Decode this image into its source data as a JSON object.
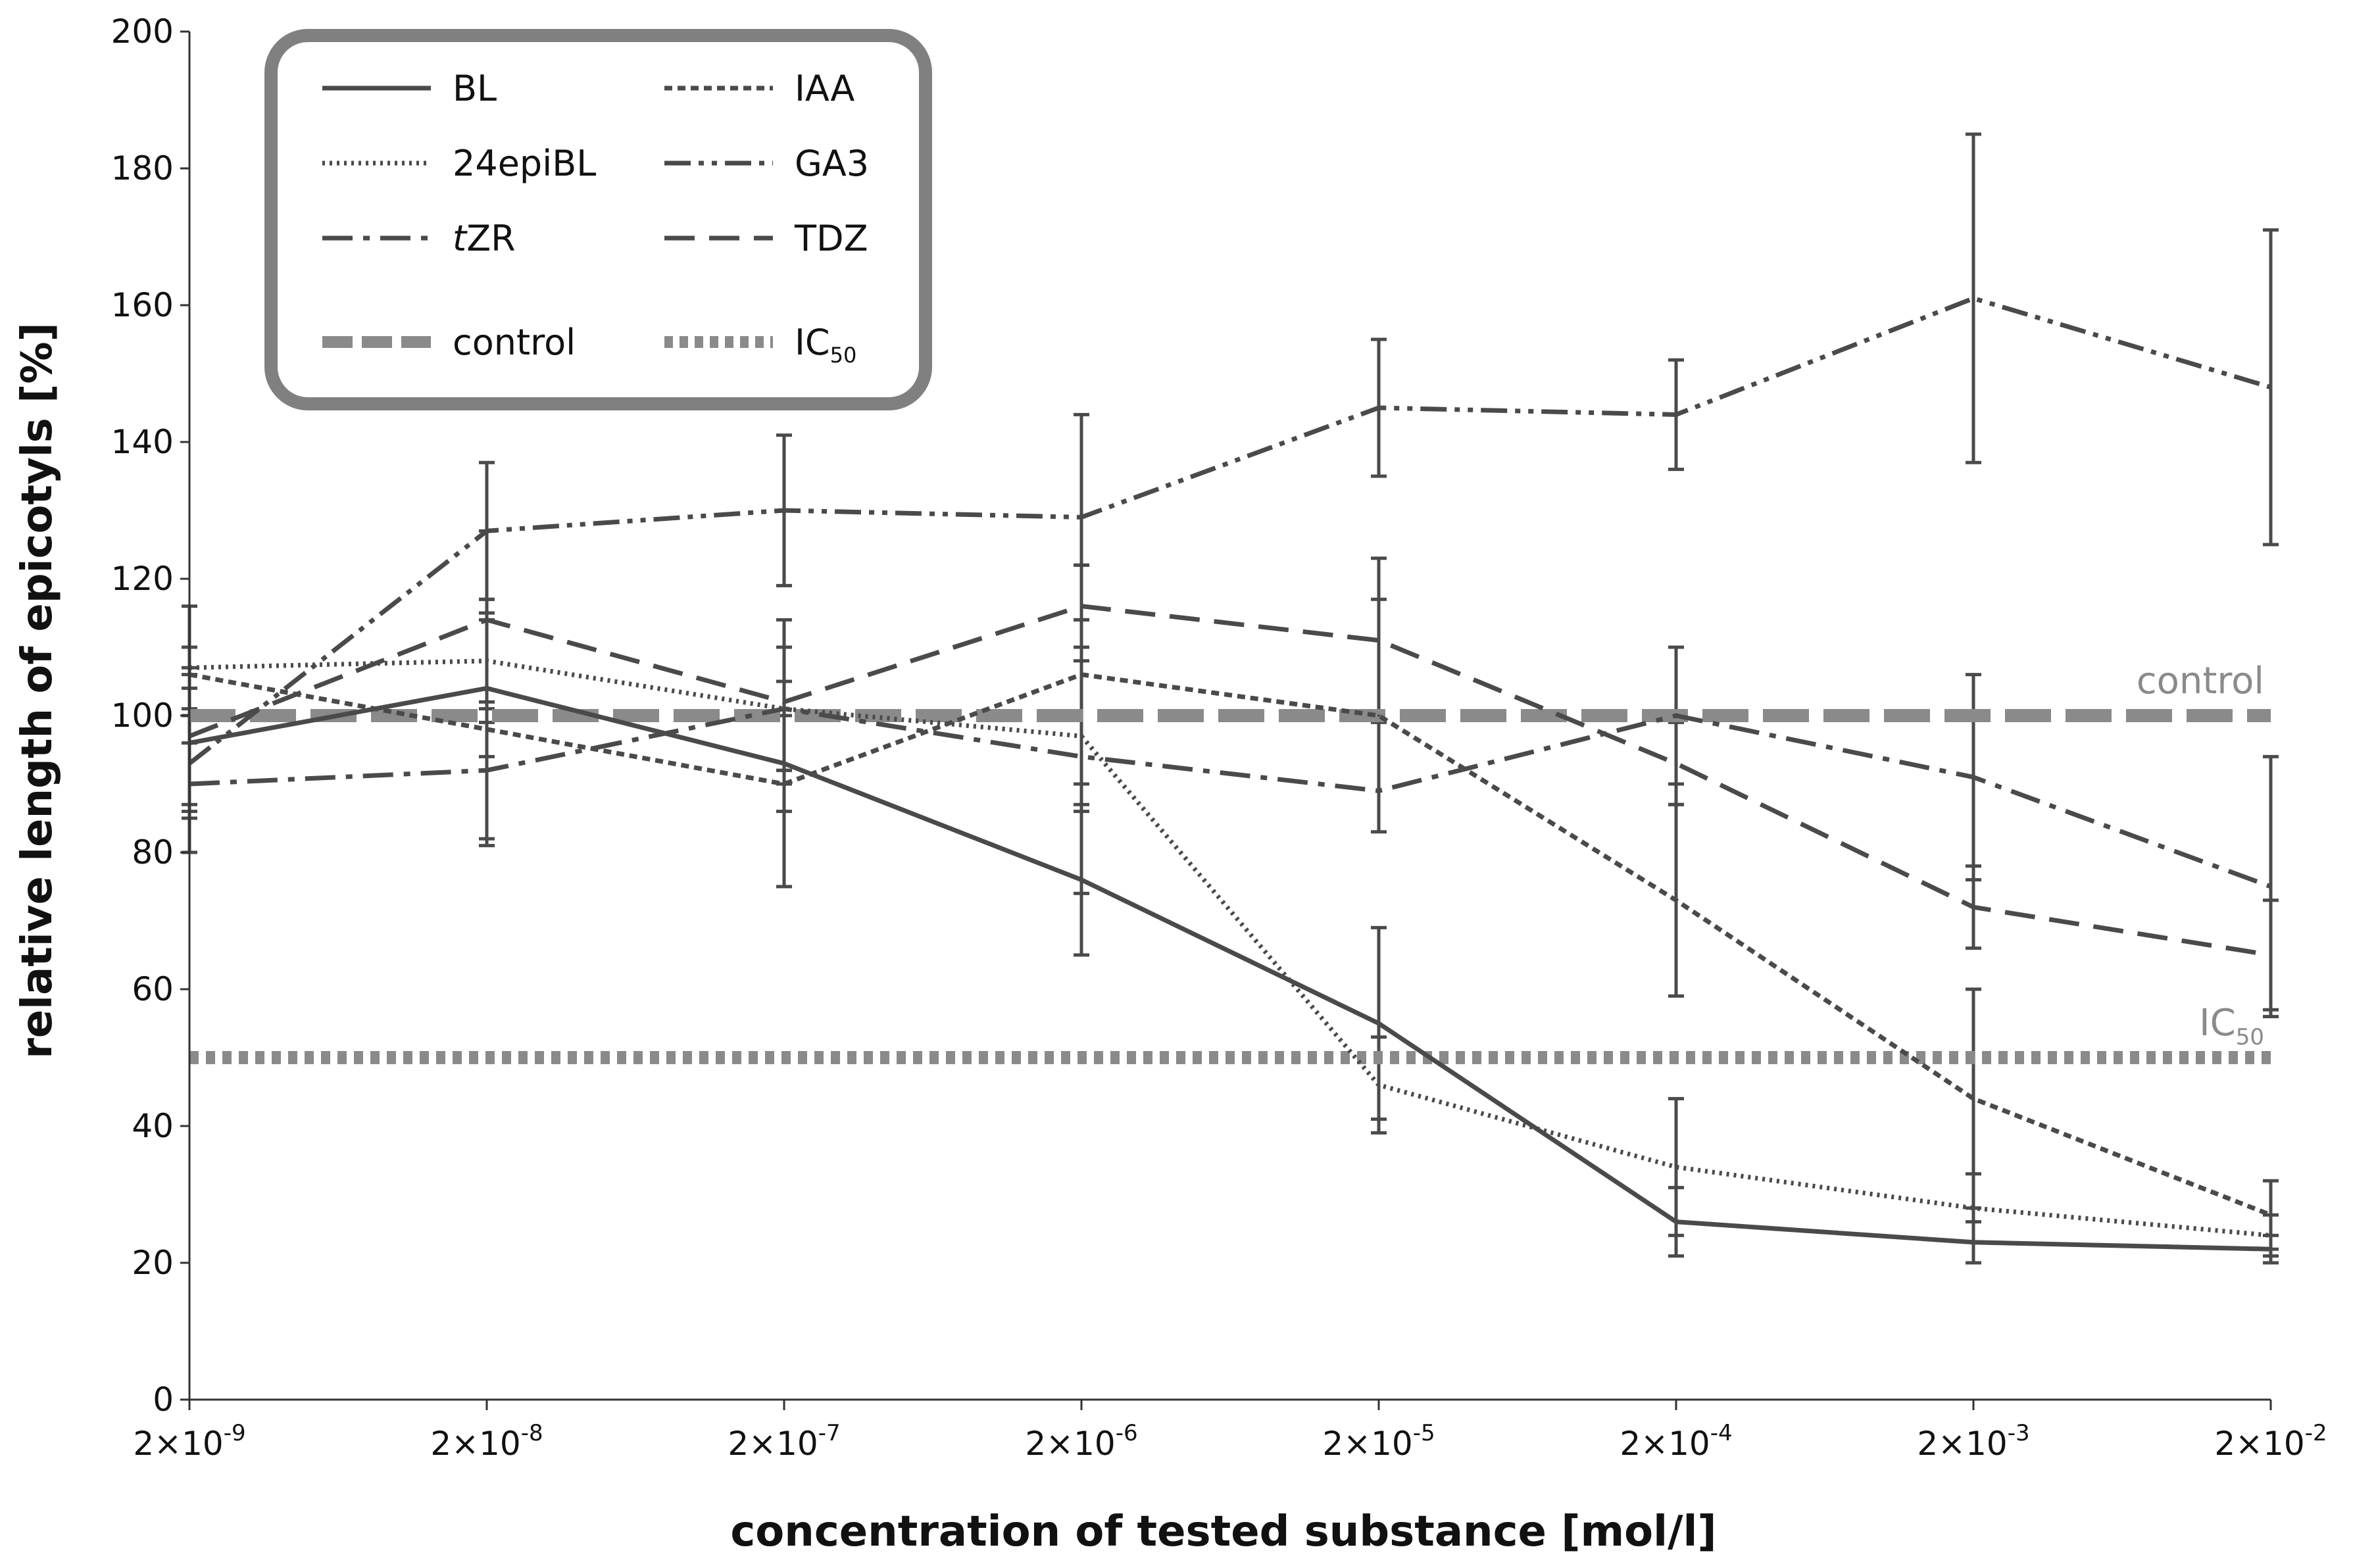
{
  "chart_data": {
    "type": "line",
    "title": "",
    "xlabel": "concentration of tested substance [mol/l]",
    "ylabel": "relative length of epicotyls [%]",
    "ylim": [
      0,
      200
    ],
    "yticks": [
      0,
      20,
      40,
      60,
      80,
      100,
      120,
      140,
      160,
      180,
      200
    ],
    "categories": [
      {
        "base": "2×10",
        "exp": "-9"
      },
      {
        "base": "2×10",
        "exp": "-8"
      },
      {
        "base": "2×10",
        "exp": "-7"
      },
      {
        "base": "2×10",
        "exp": "-6"
      },
      {
        "base": "2×10",
        "exp": "-5"
      },
      {
        "base": "2×10",
        "exp": "-4"
      },
      {
        "base": "2×10",
        "exp": "-3"
      },
      {
        "base": "2×10",
        "exp": "-2"
      }
    ],
    "series": [
      {
        "name": "BL",
        "style": "solid",
        "values": [
          96,
          104,
          93,
          76,
          55,
          26,
          23,
          22
        ],
        "errors": [
          10,
          10,
          7,
          11,
          14,
          5,
          3,
          2
        ]
      },
      {
        "name": "24epiBL",
        "style": "dotted",
        "values": [
          107,
          108,
          101,
          97,
          46,
          34,
          28,
          24
        ],
        "errors": [
          3,
          9,
          9,
          11,
          7,
          10,
          5,
          3
        ]
      },
      {
        "name": "tZR",
        "style": "dashdot",
        "values": [
          90,
          92,
          101,
          94,
          89,
          100,
          91,
          75
        ],
        "errors": [
          10,
          10,
          9,
          20,
          0,
          10,
          15,
          19
        ]
      },
      {
        "name": "IAA",
        "style": "shortdash",
        "values": [
          106,
          98,
          90,
          106,
          100,
          73,
          44,
          27
        ],
        "errors": [
          10,
          17,
          15,
          16,
          17,
          14,
          16,
          5
        ]
      },
      {
        "name": "GA3",
        "style": "dashdotdot",
        "values": [
          93,
          127,
          130,
          129,
          145,
          144,
          161,
          148
        ],
        "errors": [
          8,
          10,
          11,
          15,
          10,
          8,
          24,
          23
        ]
      },
      {
        "name": "TDZ",
        "style": "longdash",
        "values": [
          97,
          114,
          102,
          116,
          111,
          93,
          72,
          65
        ],
        "errors": [
          10,
          13,
          12,
          6,
          12,
          6,
          6,
          8
        ]
      }
    ],
    "reference_lines": [
      {
        "name": "control",
        "value": 100,
        "style": "thick-dashed",
        "color": "#8a8a8a"
      },
      {
        "name": "IC",
        "subscript": "50",
        "value": 50,
        "style": "thick-dotted",
        "color": "#8a8a8a"
      }
    ],
    "legend": {
      "position": "top-left",
      "entries": [
        {
          "label": "BL",
          "style": "solid"
        },
        {
          "label": "IAA",
          "style": "shortdash"
        },
        {
          "label": "24epiBL",
          "style": "dotted"
        },
        {
          "label": "GA3",
          "style": "dashdotdot"
        },
        {
          "label": "tZR",
          "style": "dashdot"
        },
        {
          "label": "TDZ",
          "style": "longdash"
        },
        {
          "label": "control",
          "style": "thick-dashed"
        },
        {
          "label": "IC",
          "subscript": "50",
          "style": "thick-dotted"
        }
      ]
    },
    "colors": {
      "series": "#4a4a4a",
      "reference": "#8a8a8a",
      "axis": "#333333",
      "legend_border": "#808080"
    }
  }
}
